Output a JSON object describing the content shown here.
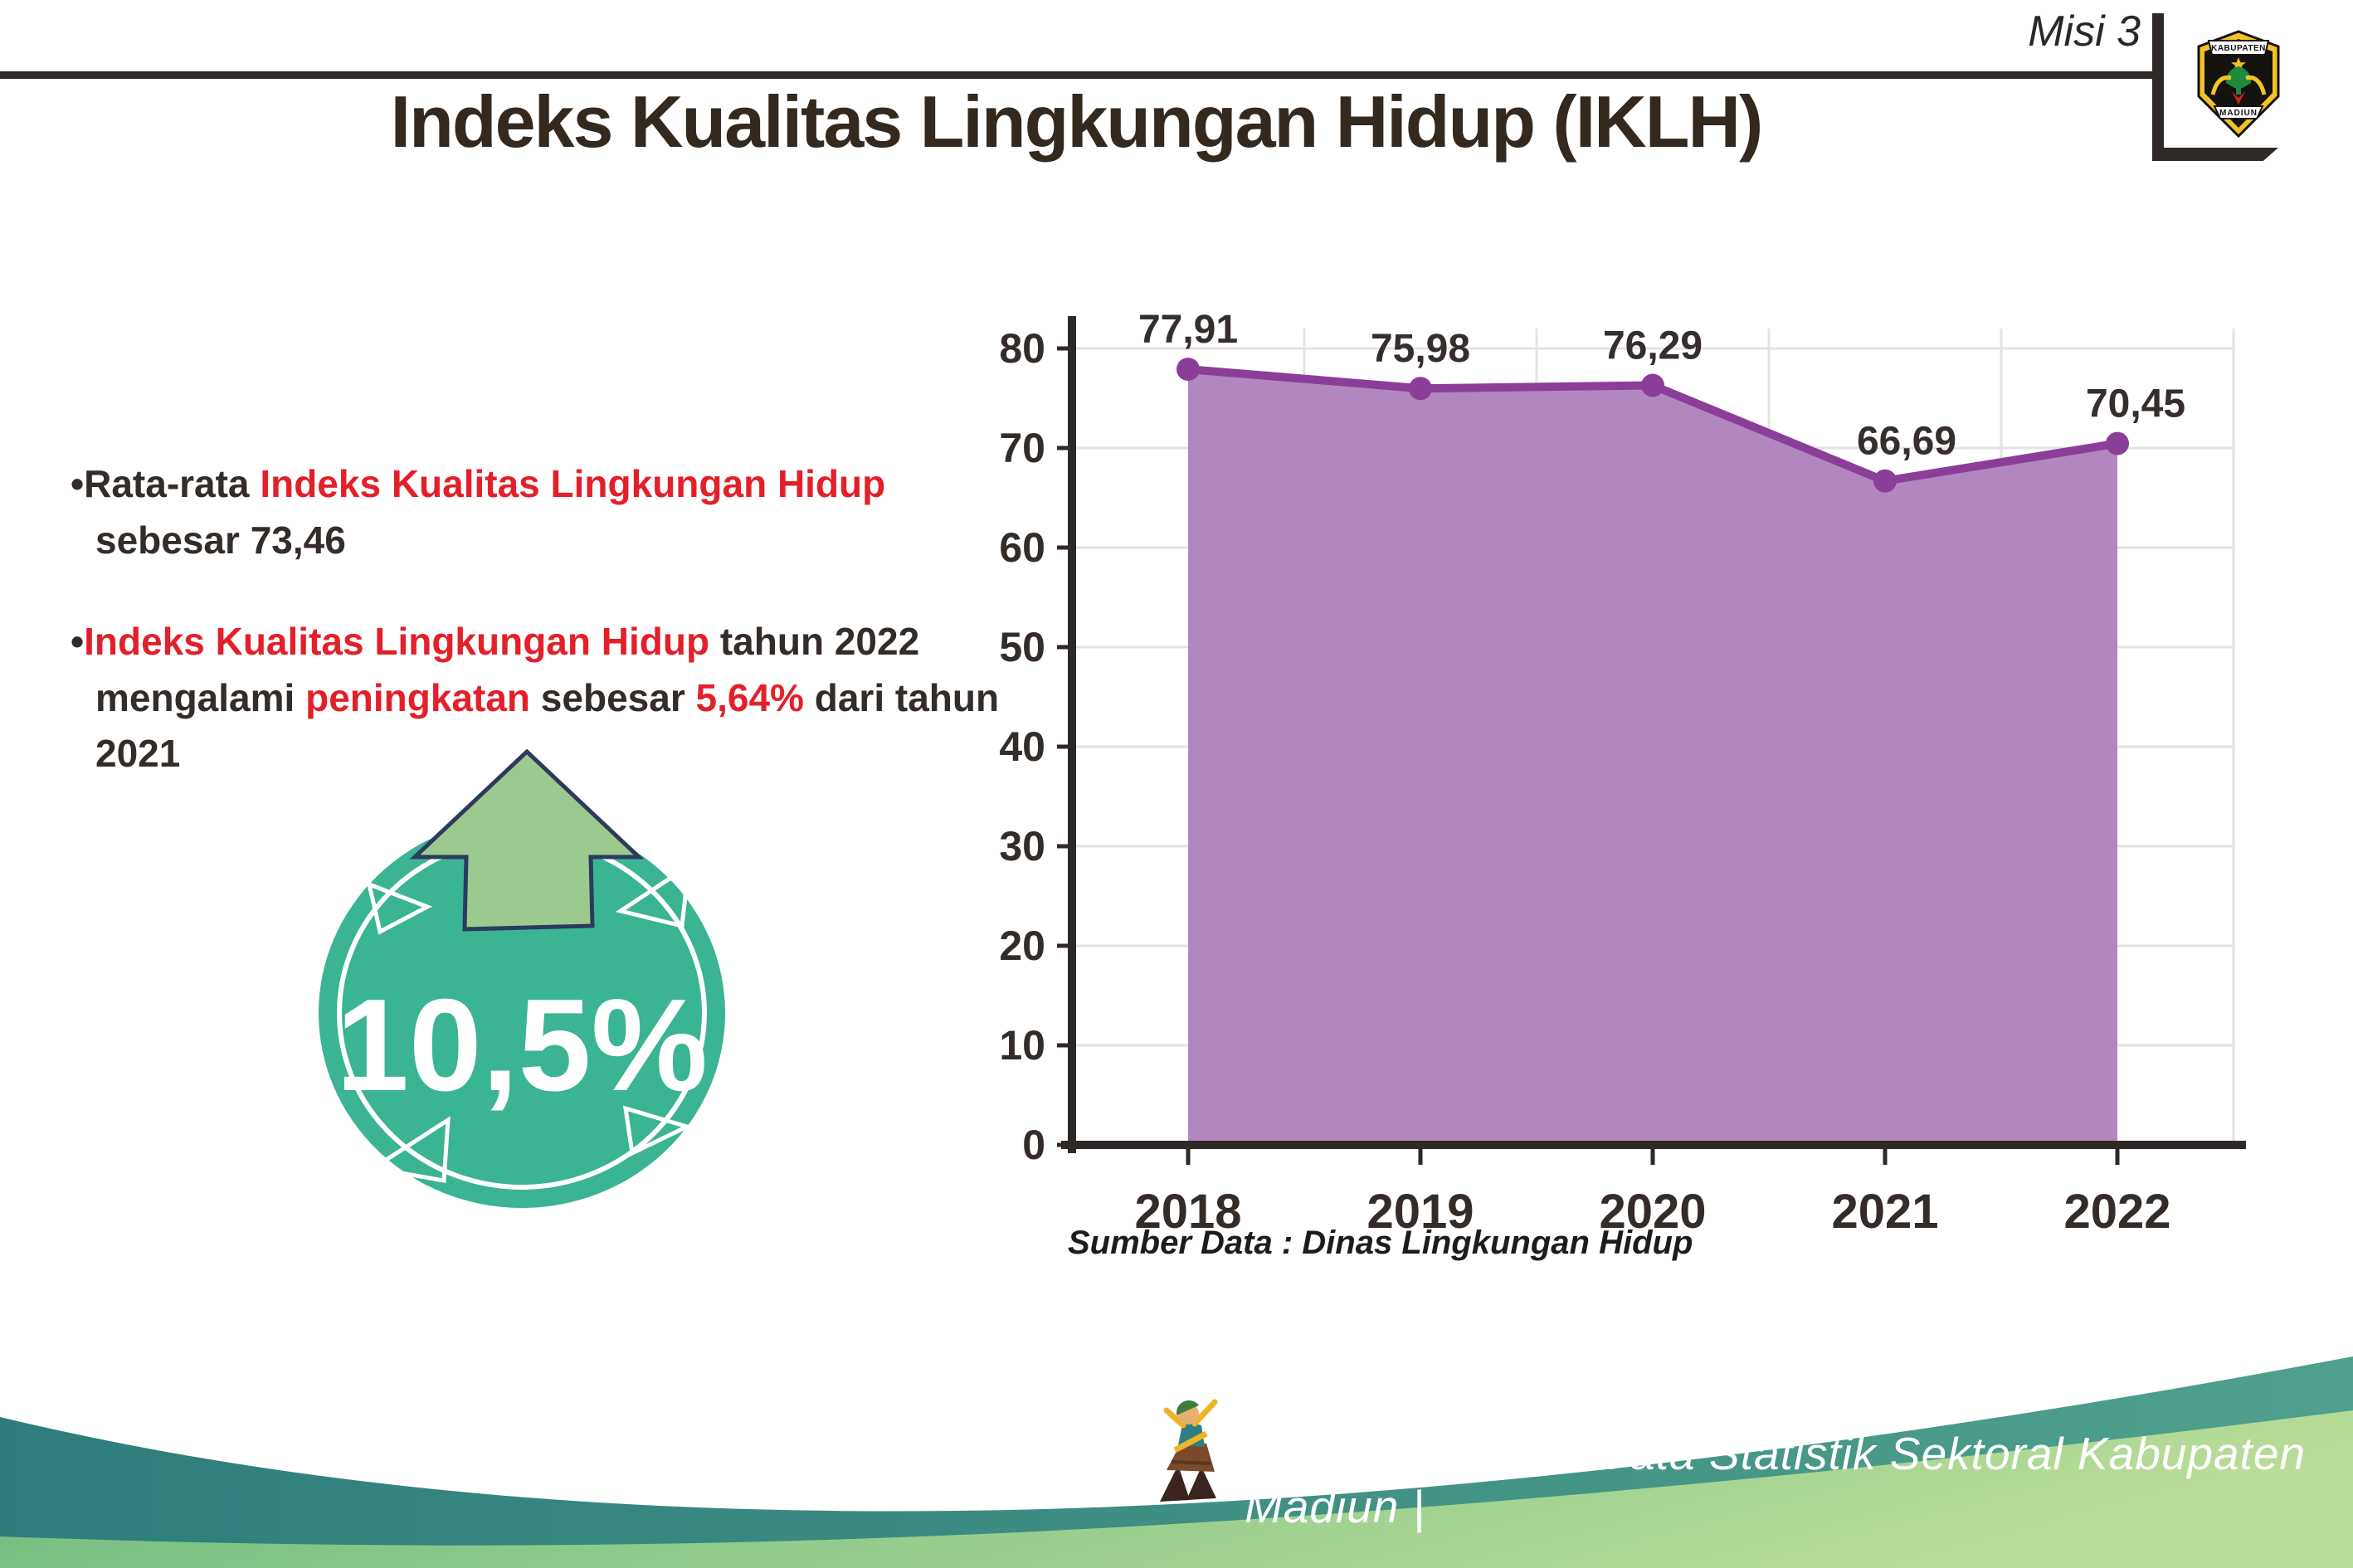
{
  "header": {
    "misi_label": "Misi 3",
    "logo": {
      "top_text": "KABUPATEN",
      "bottom_text": "MADIUN"
    }
  },
  "title": "Indeks Kualitas Lingkungan Hidup (IKLH)",
  "insights": {
    "bullet_glyph": "•",
    "bullets": [
      [
        {
          "text": "Rata-rata ",
          "red": false
        },
        {
          "text": "Indeks Kualitas Lingkungan Hidup",
          "red": true
        },
        {
          "text": " sebesar 73,46",
          "red": false
        }
      ],
      [
        {
          "text": "Indeks Kualitas Lingkungan Hidup",
          "red": true
        },
        {
          "text": " tahun 2022 mengalami ",
          "red": false
        },
        {
          "text": "peningkatan",
          "red": true
        },
        {
          "text": " sebesar ",
          "red": false
        },
        {
          "text": "5,64%",
          "red": true
        },
        {
          "text": " dari tahun 2021",
          "red": false
        }
      ]
    ]
  },
  "badge": {
    "value": "10,5%",
    "direction": "up",
    "circle_color": "#3ab493",
    "arrow_color": "#9cc98e",
    "arrow_outline": "#2c3a5e"
  },
  "chart_data": {
    "type": "area",
    "title": "",
    "categories": [
      "2018",
      "2019",
      "2020",
      "2021",
      "2022"
    ],
    "values": [
      77.91,
      75.98,
      76.29,
      66.69,
      70.45
    ],
    "value_labels": [
      "77,91",
      "75,98",
      "76,29",
      "66,69",
      "70,45"
    ],
    "label_dx": [
      0,
      0,
      0,
      26,
      22
    ],
    "ylim": [
      0,
      80
    ],
    "ytick_step": 10,
    "grid": true,
    "legend": "none",
    "line_color": "#8b3e98",
    "area_color": "#b286bf",
    "marker": "circle"
  },
  "source_note": "Sumber Data : Dinas Lingkungan Hidup",
  "footer": {
    "text": "Media Infografis Data Statistik Sektoral Kabupaten Madiun |",
    "teal_left": "#2f7d7b",
    "teal_right": "#4fa08c",
    "green_left": "#66ba7d",
    "green_right": "#b9dc98"
  }
}
